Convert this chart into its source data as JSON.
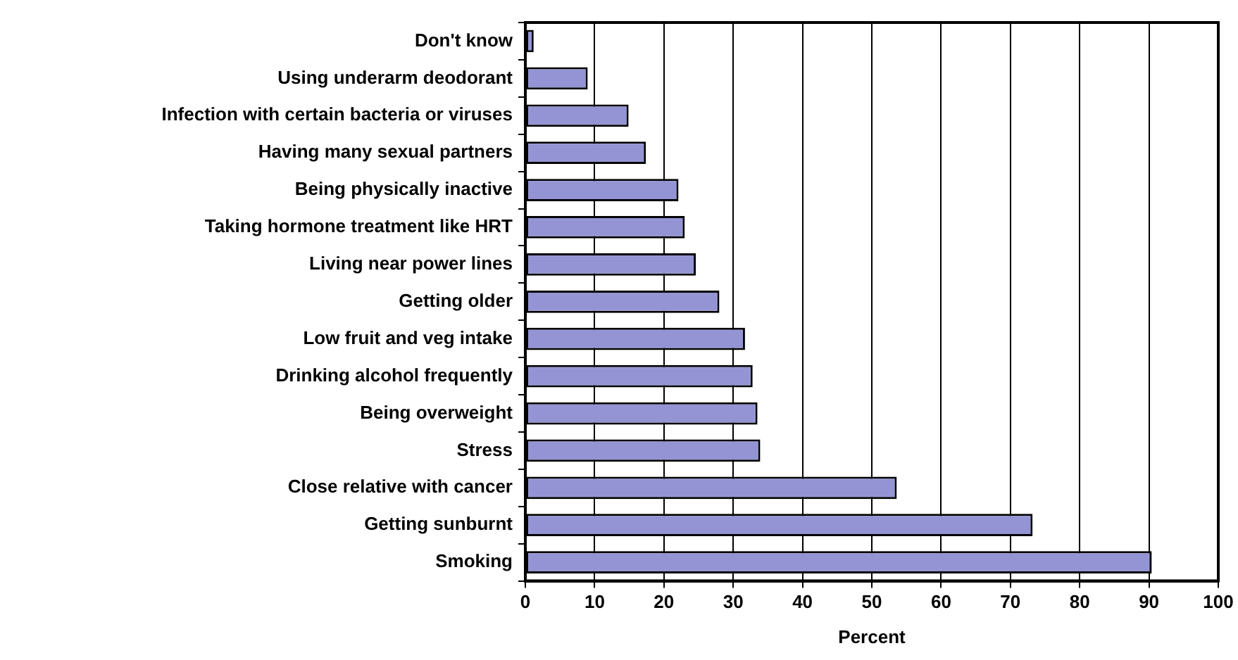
{
  "chart_data": {
    "type": "bar",
    "orientation": "horizontal",
    "xlabel": "Percent",
    "categories": [
      "Don't know",
      "Using underarm deodorant",
      "Infection with certain bacteria or viruses",
      "Having many sexual partners",
      "Being physically inactive",
      "Taking hormone treatment like HRT",
      "Living near power lines",
      "Getting older",
      "Low fruit and veg intake",
      "Drinking alcohol frequently",
      "Being overweight",
      "Stress",
      "Close relative with cancer",
      "Getting sunburnt",
      "Smoking"
    ],
    "values": [
      1.2,
      9.0,
      14.9,
      17.4,
      22.1,
      23.0,
      24.6,
      28.0,
      31.7,
      32.8,
      33.5,
      33.9,
      53.6,
      73.2,
      90.4
    ],
    "color": "#9494d4",
    "xlim": [
      0,
      100
    ],
    "xticks": [
      0,
      10,
      20,
      30,
      40,
      50,
      60,
      70,
      80,
      90,
      100
    ],
    "grid": "x",
    "legend": false
  }
}
